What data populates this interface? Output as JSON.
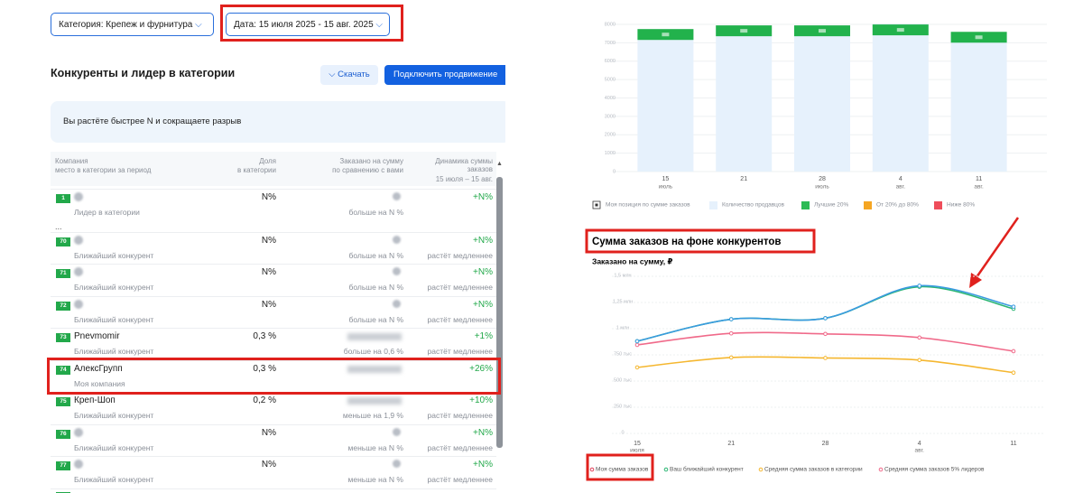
{
  "filters": {
    "category": "Категория: Крепеж и фурнитура",
    "date": "Дата: 15 июля 2025 - 15 авг. 2025"
  },
  "section": {
    "title": "Конкуренты и лидер в категории",
    "download": "Скачать",
    "promote": "Подключить продвижение"
  },
  "banner": "Вы растёте быстрее N и сокращаете разрыв",
  "table": {
    "columns": [
      {
        "title": "Компания",
        "subtitle": "место в категории за период"
      },
      {
        "title": "Доля",
        "subtitle": "в категории"
      },
      {
        "title": "Заказано на сумму",
        "subtitle": "по сравнению с вами"
      },
      {
        "title": "Динамика суммы заказов",
        "subtitle": "15 июля – 15 авг."
      }
    ],
    "rows": [
      {
        "rank": "1",
        "subtitle": "Лидер в категории",
        "share": "N%",
        "comparison": "больше на N %",
        "dynamics": "+N%"
      },
      {
        "text": "..."
      },
      {
        "rank": "70",
        "subtitle": "Ближайший конкурент",
        "share": "N%",
        "comparison": "больше на N %",
        "dynamics": "+N%",
        "dynamics_note": "растёт медленнее"
      },
      {
        "rank": "71",
        "subtitle": "Ближайший конкурент",
        "share": "N%",
        "comparison": "больше на N %",
        "dynamics": "+N%",
        "dynamics_note": "растёт медленнее"
      },
      {
        "rank": "72",
        "subtitle": "Ближайший конкурент",
        "share": "N%",
        "comparison": "больше на N %",
        "dynamics": "+N%",
        "dynamics_note": "растёт медленнее"
      },
      {
        "rank": "73",
        "name": "Pnevmomir",
        "subtitle": "Ближайший конкурент",
        "share": "0,3 %",
        "comparison": "больше на 0,6 %",
        "dynamics": "+1%",
        "dynamics_note": "растёт медленнее"
      },
      {
        "rank": "74",
        "name": "АлексГрупп",
        "subtitle": "Моя компания",
        "share": "0,3 %",
        "dynamics": "+26%"
      },
      {
        "rank": "75",
        "name": "Креп-Шоп",
        "subtitle": "Ближайший конкурент",
        "share": "0,2 %",
        "comparison": "меньше на 1,9 %",
        "dynamics": "+10%",
        "dynamics_note": "растёт медленнее"
      },
      {
        "rank": "76",
        "subtitle": "Ближайший конкурент",
        "share": "N%",
        "comparison": "меньше на N %",
        "dynamics": "+N%",
        "dynamics_note": "растёт медленнее"
      },
      {
        "rank": "77",
        "subtitle": "Ближайший конкурент",
        "share": "N%",
        "comparison": "меньше на N %",
        "dynamics": "+N%",
        "dynamics_note": "растёт медленнее"
      }
    ]
  },
  "chart_data": [
    {
      "type": "bar",
      "categories": [
        "15",
        "21",
        "28",
        "4",
        "11"
      ],
      "category_sublabels": [
        "июль",
        null,
        "июль",
        "авг.",
        "авг."
      ],
      "series": [
        {
          "name": "Количество продавцов",
          "color": "#e6f1fc",
          "values": [
            7750,
            7950,
            7950,
            8050,
            7550
          ]
        }
      ],
      "position": {
        "name": "Моя позиция по сумме заказов",
        "color": "#22b24c",
        "values": [
          7450,
          7650,
          7650,
          7700,
          7300
        ]
      },
      "tiers": [
        {
          "name": "Лучшие 20%",
          "color": "#2dbb55"
        },
        {
          "name": "От 20% до 80%",
          "color": "#f5a623"
        },
        {
          "name": "Ниже 80%",
          "color": "#ef4d5a"
        }
      ],
      "ylim": [
        0,
        8000
      ],
      "yticks": [
        0,
        1000,
        2000,
        3000,
        4000,
        5000,
        6000,
        7000,
        8000
      ],
      "grid": true
    },
    {
      "type": "line",
      "title": "Сумма заказов на фоне конкурентов",
      "subtitle": "Заказано на сумму, ₽",
      "categories": [
        "15",
        "21",
        "28",
        "4",
        "11"
      ],
      "category_sublabels": [
        "июля",
        null,
        null,
        "авг.",
        null
      ],
      "series": [
        {
          "name": "Моя сумма заказов",
          "color": "#3a9be0",
          "values": [
            880000,
            1090000,
            1100000,
            1410000,
            1210000
          ]
        },
        {
          "name": "Ваш ближайший конкурент",
          "color": "#2bb673",
          "values": [
            880000,
            1090000,
            1100000,
            1400000,
            1190000
          ]
        },
        {
          "name": "Средняя сумма заказов в категории",
          "color": "#f5b730",
          "values": [
            630000,
            725000,
            720000,
            700000,
            580000
          ]
        },
        {
          "name": "Средняя сумма заказов 5% лидеров",
          "color": "#f06a8a",
          "values": [
            845000,
            955000,
            950000,
            915000,
            785000
          ]
        }
      ],
      "ylim": [
        0,
        1500000
      ],
      "yticks": [
        0,
        {
          "value": 250000,
          "label": "250 тыс"
        },
        {
          "value": 500000,
          "label": "500 тыс"
        },
        {
          "value": 750000,
          "label": "750 тыс"
        },
        {
          "value": 1000000,
          "label": "1 млн"
        },
        {
          "value": 1250000,
          "label": "1,25 млн"
        },
        {
          "value": 1500000,
          "label": "1,5 млн"
        }
      ],
      "grid": true
    }
  ]
}
